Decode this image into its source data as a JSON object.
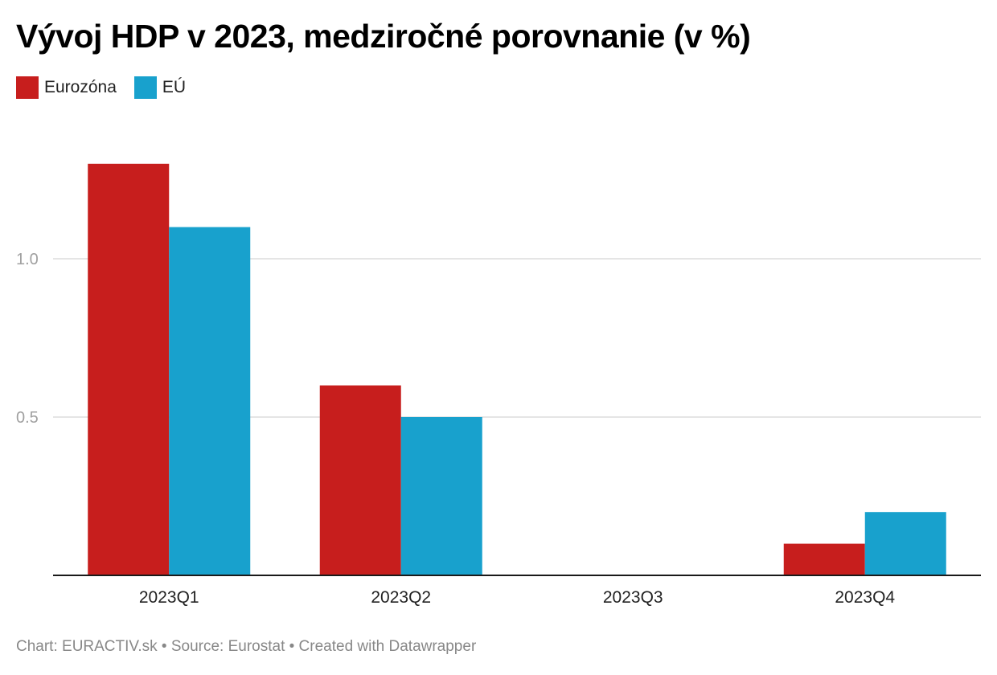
{
  "title": "Vývoj HDP v 2023, medziročné porovnanie (v %)",
  "legend": [
    {
      "label": "Eurozóna",
      "color": "#c71e1d"
    },
    {
      "label": "EÚ",
      "color": "#18a1cd"
    }
  ],
  "footer": "Chart: EURACTIV.sk • Source: Eurostat • Created with Datawrapper",
  "chart_data": {
    "type": "bar",
    "title": "Vývoj HDP v 2023, medziročné porovnanie (v %)",
    "xlabel": "",
    "ylabel": "",
    "categories": [
      "2023Q1",
      "2023Q2",
      "2023Q3",
      "2023Q4"
    ],
    "series": [
      {
        "name": "Eurozóna",
        "color": "#c71e1d",
        "values": [
          1.3,
          0.6,
          0.0,
          0.1
        ]
      },
      {
        "name": "EÚ",
        "color": "#18a1cd",
        "values": [
          1.1,
          0.5,
          0.0,
          0.2
        ]
      }
    ],
    "yticks": [
      0.5,
      1.0
    ],
    "ytick_labels": [
      "0.5",
      "1.0"
    ],
    "ylim": [
      0,
      1.4
    ],
    "grid": true,
    "legend_position": "top-left"
  }
}
